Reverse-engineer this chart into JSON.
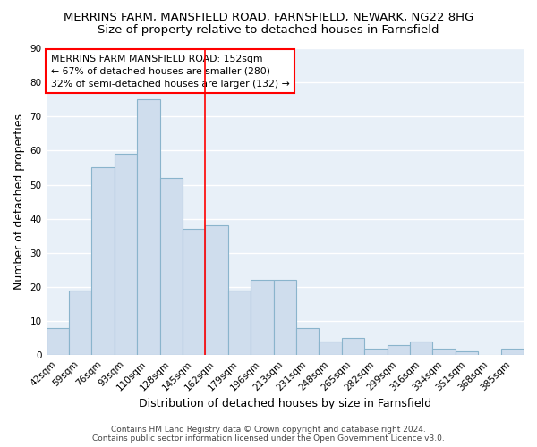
{
  "title": "MERRINS FARM, MANSFIELD ROAD, FARNSFIELD, NEWARK, NG22 8HG",
  "subtitle": "Size of property relative to detached houses in Farnsfield",
  "xlabel": "Distribution of detached houses by size in Farnsfield",
  "ylabel": "Number of detached properties",
  "categories": [
    "42sqm",
    "59sqm",
    "76sqm",
    "93sqm",
    "110sqm",
    "128sqm",
    "145sqm",
    "162sqm",
    "179sqm",
    "196sqm",
    "213sqm",
    "231sqm",
    "248sqm",
    "265sqm",
    "282sqm",
    "299sqm",
    "316sqm",
    "334sqm",
    "351sqm",
    "368sqm",
    "385sqm"
  ],
  "values": [
    8,
    19,
    55,
    59,
    75,
    52,
    37,
    38,
    19,
    22,
    22,
    8,
    4,
    5,
    2,
    3,
    4,
    2,
    1,
    0,
    2
  ],
  "bar_color": "#cfdded",
  "bar_edge_color": "#8ab4cc",
  "red_line_index": 7,
  "red_line_label": "MERRINS FARM MANSFIELD ROAD: 152sqm",
  "annotation_line1": "← 67% of detached houses are smaller (280)",
  "annotation_line2": "32% of semi-detached houses are larger (132) →",
  "ylim": [
    0,
    90
  ],
  "yticks": [
    0,
    10,
    20,
    30,
    40,
    50,
    60,
    70,
    80,
    90
  ],
  "footnote1": "Contains HM Land Registry data © Crown copyright and database right 2024.",
  "footnote2": "Contains public sector information licensed under the Open Government Licence v3.0.",
  "bg_color": "#ffffff",
  "plot_bg_color": "#e8f0f8",
  "grid_color": "#ffffff",
  "title_fontsize": 9.5,
  "subtitle_fontsize": 9.5,
  "axis_label_fontsize": 9,
  "tick_fontsize": 7.5,
  "footnote_fontsize": 6.5
}
